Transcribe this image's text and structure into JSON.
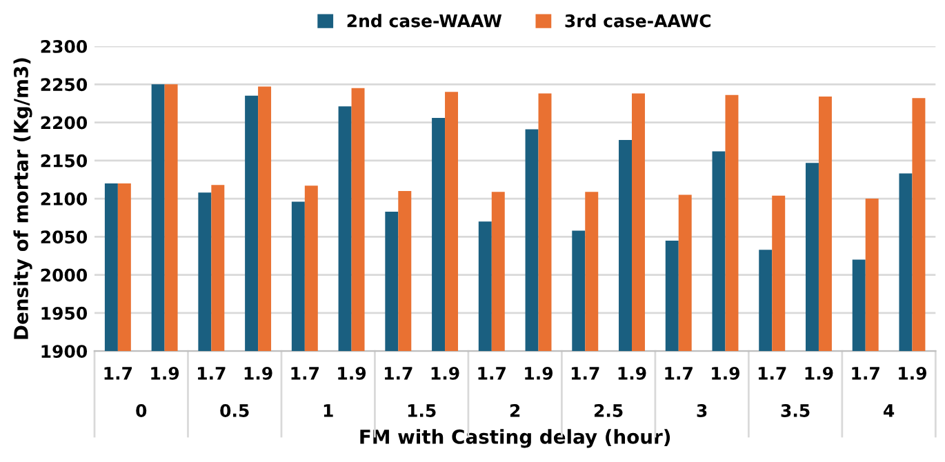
{
  "chart_data": {
    "type": "bar",
    "xlabel": "FM with Casting delay (hour)",
    "ylabel": "Density of mortar (Kg/m3)",
    "categories": [
      "1.7",
      "1.9",
      "1.7",
      "1.9",
      "1.7",
      "1.9",
      "1.7",
      "1.9",
      "1.7",
      "1.9",
      "1.7",
      "1.9",
      "1.7",
      "1.9",
      "1.7",
      "1.9",
      "1.7",
      "1.9"
    ],
    "annotations": [
      "0",
      "0.5",
      "1",
      "1.5",
      "2",
      "2.5",
      "3",
      "3.5",
      "4"
    ],
    "series": [
      {
        "name": "2nd case-WAAW",
        "color": "#1a5f80",
        "values": [
          2120,
          2250,
          2108,
          2235,
          2096,
          2221,
          2083,
          2206,
          2070,
          2191,
          2058,
          2177,
          2045,
          2162,
          2033,
          2147,
          2020,
          2133
        ]
      },
      {
        "name": "3rd case-AAWC",
        "color": "#e97132",
        "values": [
          2120,
          2250,
          2118,
          2247,
          2117,
          2245,
          2110,
          2240,
          2109,
          2238,
          2109,
          2238,
          2105,
          2236,
          2104,
          2234,
          2100,
          2232
        ]
      }
    ],
    "ylim": [
      1900,
      2300
    ],
    "yticks": [
      1900,
      1950,
      2000,
      2050,
      2100,
      2150,
      2200,
      2250,
      2300
    ],
    "grid": "y",
    "legend": "top"
  }
}
